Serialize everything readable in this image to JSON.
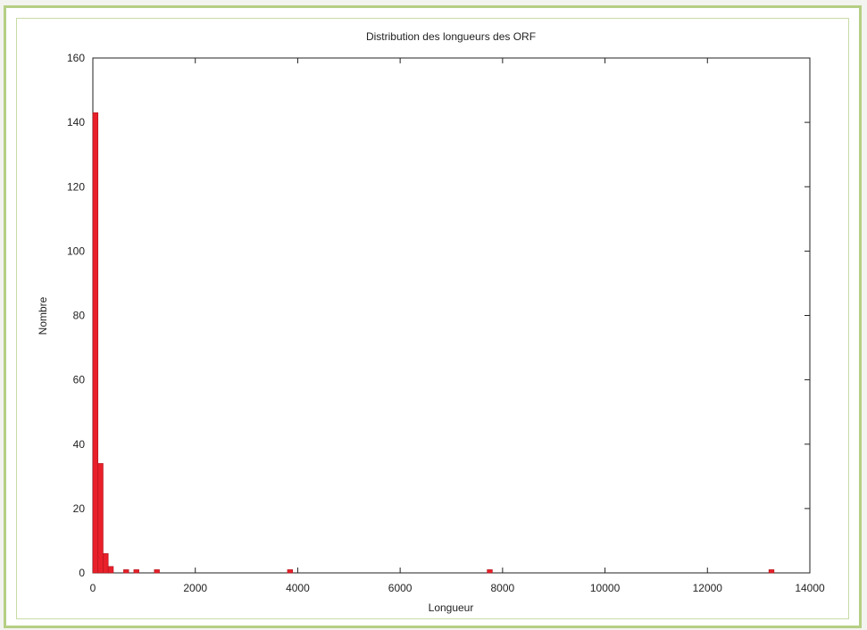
{
  "chart_data": {
    "type": "bar",
    "title": "Distribution des longueurs des ORF",
    "xlabel": "Longueur",
    "ylabel": "Nombre",
    "xlim": [
      0,
      14000
    ],
    "ylim": [
      0,
      160
    ],
    "xticks": [
      0,
      2000,
      4000,
      6000,
      8000,
      10000,
      12000,
      14000
    ],
    "yticks": [
      0,
      20,
      40,
      60,
      80,
      100,
      120,
      140,
      160
    ],
    "bin_width": 100,
    "bars": [
      {
        "x": 50,
        "value": 143
      },
      {
        "x": 150,
        "value": 34
      },
      {
        "x": 250,
        "value": 6
      },
      {
        "x": 350,
        "value": 2
      },
      {
        "x": 650,
        "value": 1
      },
      {
        "x": 850,
        "value": 1
      },
      {
        "x": 1250,
        "value": 1
      },
      {
        "x": 3850,
        "value": 1
      },
      {
        "x": 7750,
        "value": 1
      },
      {
        "x": 13250,
        "value": 1
      }
    ],
    "bar_color": "#e8202a",
    "grid": false,
    "legend": "none"
  }
}
